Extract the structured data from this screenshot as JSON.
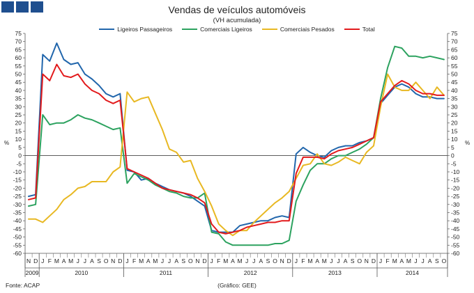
{
  "header": {
    "logo_name": "logo-blue-squares",
    "title": "Vendas de veículos automóveis",
    "subtitle": "(VH acumulada)"
  },
  "footer": {
    "source": "Fonte: ACAP",
    "credit": "(Gráfico: GEE)"
  },
  "chart_data": {
    "type": "line",
    "title": "Vendas de veículos automóveis",
    "subtitle": "(VH acumulada)",
    "ylabel_left": "%",
    "ylabel_right": "%",
    "ylim": [
      -60,
      75
    ],
    "ytick_step": 5,
    "grid": false,
    "legend_position": "top",
    "months": [
      "N",
      "D",
      "J",
      "F",
      "M",
      "A",
      "M",
      "J",
      "J",
      "A",
      "S",
      "O",
      "N",
      "D",
      "J",
      "F",
      "M",
      "A",
      "M",
      "J",
      "J",
      "A",
      "S",
      "O",
      "N",
      "D",
      "J",
      "F",
      "M",
      "A",
      "M",
      "J",
      "J",
      "A",
      "S",
      "O",
      "N",
      "D",
      "J",
      "F",
      "M",
      "A",
      "M",
      "J",
      "J",
      "A",
      "S",
      "O",
      "N",
      "D",
      "J",
      "F",
      "M",
      "A",
      "M",
      "J",
      "J",
      "A",
      "S",
      "O"
    ],
    "years": [
      {
        "label": "2009",
        "start": 0,
        "end": 1
      },
      {
        "label": "2010",
        "start": 2,
        "end": 13
      },
      {
        "label": "2011",
        "start": 14,
        "end": 25
      },
      {
        "label": "2012",
        "start": 26,
        "end": 37
      },
      {
        "label": "2013",
        "start": 38,
        "end": 49
      },
      {
        "label": "2014",
        "start": 50,
        "end": 59
      }
    ],
    "series": [
      {
        "name": "Ligeiros Passageiros",
        "color": "#2166ac",
        "values": [
          -25,
          -24,
          62,
          58,
          69,
          59,
          56,
          57,
          50,
          47,
          43,
          38,
          36,
          38,
          -9,
          -10,
          -15,
          -14,
          -17,
          -19,
          -21,
          -22,
          -23,
          -25,
          -28,
          -31,
          -46,
          -47,
          -47,
          -47,
          -43,
          -42,
          -41,
          -40,
          -40,
          -38,
          -37,
          -38,
          1,
          5,
          2,
          0,
          -1,
          3,
          5,
          6,
          6,
          8,
          9,
          11,
          32,
          37,
          42,
          44,
          42,
          38,
          36,
          36,
          35,
          35
        ]
      },
      {
        "name": "Comerciais Ligeiros",
        "color": "#2ca25f",
        "values": [
          -31,
          -30,
          25,
          19,
          20,
          20,
          22,
          25,
          23,
          22,
          20,
          18,
          16,
          17,
          -17,
          -11,
          -13,
          -15,
          -18,
          -20,
          -22,
          -23,
          -25,
          -26,
          -26,
          -23,
          -47,
          -48,
          -53,
          -55,
          -55,
          -55,
          -55,
          -55,
          -55,
          -54,
          -54,
          -52,
          -28,
          -18,
          -9,
          -5,
          -5,
          -2,
          0,
          0,
          2,
          4,
          7,
          11,
          35,
          54,
          67,
          66,
          61,
          61,
          60,
          61,
          60,
          59
        ]
      },
      {
        "name": "Comerciais Pesados",
        "color": "#e8b822",
        "values": [
          -39,
          -39,
          -41,
          -37,
          -33,
          -27,
          -24,
          -20,
          -19,
          -16,
          -16,
          -16,
          -10,
          -7,
          39,
          33,
          35,
          36,
          26,
          16,
          4,
          2,
          -4,
          -3,
          -14,
          -22,
          -31,
          -42,
          -46,
          -49,
          -46,
          -46,
          -41,
          -37,
          -33,
          -29,
          -26,
          -22,
          -14,
          -6,
          -5,
          1,
          -5,
          -6,
          -4,
          -1,
          -3,
          -5,
          2,
          6,
          30,
          50,
          42,
          40,
          40,
          45,
          40,
          35,
          42,
          37
        ]
      },
      {
        "name": "Total",
        "color": "#e21a1c",
        "values": [
          -27,
          -26,
          50,
          46,
          56,
          49,
          48,
          50,
          44,
          40,
          38,
          34,
          32,
          34,
          -8,
          -10,
          -12,
          -14,
          -17,
          -20,
          -21,
          -22,
          -23,
          -24,
          -26,
          -29,
          -42,
          -47,
          -48,
          -47,
          -46,
          -44,
          -43,
          -42,
          -41,
          -41,
          -40,
          -40,
          -11,
          -1,
          -1,
          -1,
          -2,
          1,
          3,
          4,
          5,
          7,
          9,
          11,
          33,
          38,
          43,
          46,
          44,
          40,
          38,
          38,
          37,
          37
        ]
      }
    ]
  }
}
